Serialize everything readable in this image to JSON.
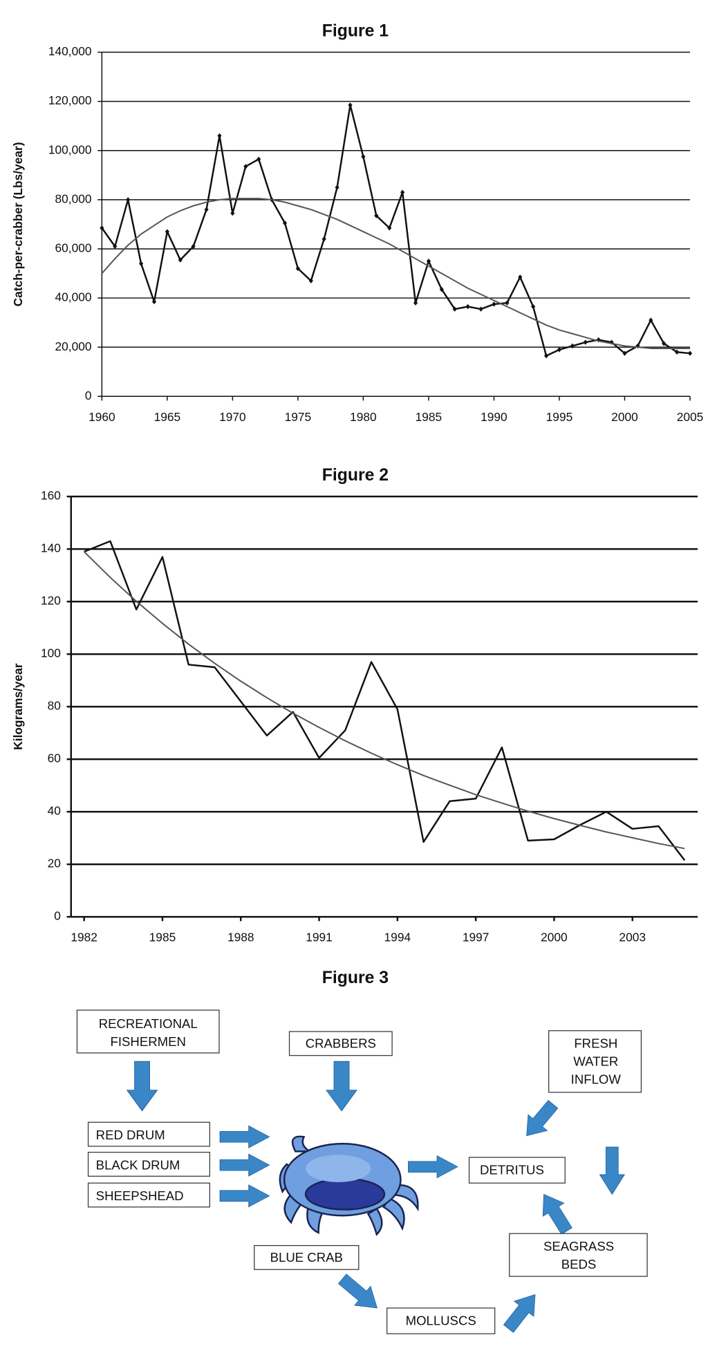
{
  "chart_data": [
    {
      "type": "line",
      "title": "Figure 1",
      "y_label": "Catch-per-crabber (Lbs/year)",
      "x": [
        1960,
        1961,
        1962,
        1963,
        1964,
        1965,
        1966,
        1967,
        1968,
        1969,
        1970,
        1971,
        1972,
        1973,
        1974,
        1975,
        1976,
        1977,
        1978,
        1979,
        1980,
        1981,
        1982,
        1983,
        1984,
        1985,
        1986,
        1987,
        1988,
        1989,
        1990,
        1991,
        1992,
        1993,
        1994,
        1995,
        1996,
        1997,
        1998,
        1999,
        2000,
        2001,
        2002,
        2003,
        2004,
        2005
      ],
      "series": [
        {
          "color": "#111111",
          "markers": true,
          "values": [
            68500,
            61000,
            80000,
            54000,
            38500,
            67000,
            55500,
            61000,
            76000,
            106000,
            74500,
            93500,
            96500,
            80000,
            70500,
            52000,
            47000,
            64000,
            85000,
            118500,
            97500,
            73500,
            68500,
            83000,
            38000,
            55000,
            43500,
            35500,
            36500,
            35500,
            37500,
            38000,
            48500,
            36500,
            16500,
            19000,
            20500,
            22000,
            23000,
            22000,
            17500,
            20500,
            31000,
            21500,
            18000,
            17500
          ]
        },
        {
          "color": "#555555",
          "markers": false,
          "values": [
            50000,
            56000,
            61500,
            66000,
            69500,
            73000,
            75500,
            77500,
            79000,
            80000,
            80500,
            80500,
            80500,
            80000,
            79000,
            77500,
            76000,
            74000,
            72000,
            69500,
            67000,
            64500,
            62000,
            59000,
            56000,
            53000,
            50000,
            47000,
            44000,
            41500,
            39000,
            36500,
            34000,
            31500,
            29000,
            27000,
            25500,
            24000,
            22500,
            21500,
            20500,
            20000,
            19500,
            19500,
            19500,
            19500
          ]
        }
      ],
      "xlim": [
        1960,
        2005
      ],
      "xticks": [
        1960,
        1965,
        1970,
        1975,
        1980,
        1985,
        1990,
        1995,
        2000,
        2005
      ],
      "ylim": [
        0,
        140000
      ],
      "yticks": [
        0,
        {
          "value": 20000,
          "label": "20,000"
        },
        {
          "value": 40000,
          "label": "40,000"
        },
        {
          "value": 60000,
          "label": "60,000"
        },
        {
          "value": 80000,
          "label": "80,000"
        },
        {
          "value": 100000,
          "label": "100,000"
        },
        {
          "value": 120000,
          "label": "120,000"
        },
        {
          "value": 140000,
          "label": "140,000"
        }
      ],
      "grid": true
    },
    {
      "type": "line",
      "title": "Figure 2",
      "y_label": "Kilograms/year",
      "x": [
        1982,
        1983,
        1984,
        1985,
        1986,
        1987,
        1988,
        1989,
        1990,
        1991,
        1992,
        1993,
        1994,
        1995,
        1996,
        1997,
        1998,
        1999,
        2000,
        2001,
        2002,
        2003,
        2004,
        2005
      ],
      "series": [
        {
          "color": "#111111",
          "markers": false,
          "values": [
            139,
            143,
            117,
            137,
            96,
            95,
            82,
            69,
            78,
            60.5,
            71,
            97,
            79,
            28.5,
            44,
            45,
            64.5,
            29,
            29.5,
            35,
            40,
            33.5,
            34.5,
            21.5
          ]
        },
        {
          "color": "#555555",
          "markers": false,
          "values": [
            139,
            129.2,
            120.1,
            111.7,
            103.8,
            96.5,
            89.7,
            83.4,
            77.5,
            72.1,
            67,
            62.3,
            57.9,
            53.8,
            50.1,
            46.5,
            43.3,
            40.2,
            37.4,
            34.8,
            32.3,
            30.1,
            27.9,
            26
          ]
        }
      ],
      "xlim": [
        1981.5,
        2005.5
      ],
      "xticks": [
        1982,
        1985,
        1988,
        1991,
        1994,
        1997,
        2000,
        2003
      ],
      "ylim": [
        0,
        160
      ],
      "yticks": [
        0,
        20,
        40,
        60,
        80,
        100,
        120,
        140,
        160
      ],
      "grid": true
    }
  ],
  "diagram": {
    "title": "Figure 3",
    "nodes": [
      {
        "lines": [
          "RECREATIONAL",
          "FISHERMEN"
        ]
      },
      {
        "lines": [
          "CRABBERS"
        ]
      },
      {
        "lines": [
          "FRESH",
          "WATER",
          "INFLOW"
        ]
      },
      {
        "lines": [
          "RED DRUM"
        ]
      },
      {
        "lines": [
          "BLACK DRUM"
        ]
      },
      {
        "lines": [
          "SHEEPSHEAD"
        ]
      },
      {
        "lines": [
          "DETRITUS"
        ]
      },
      {
        "lines": [
          "BLUE CRAB"
        ]
      },
      {
        "lines": [
          "SEAGRASS",
          "BEDS"
        ]
      },
      {
        "lines": [
          "MOLLUSCS"
        ]
      }
    ]
  }
}
